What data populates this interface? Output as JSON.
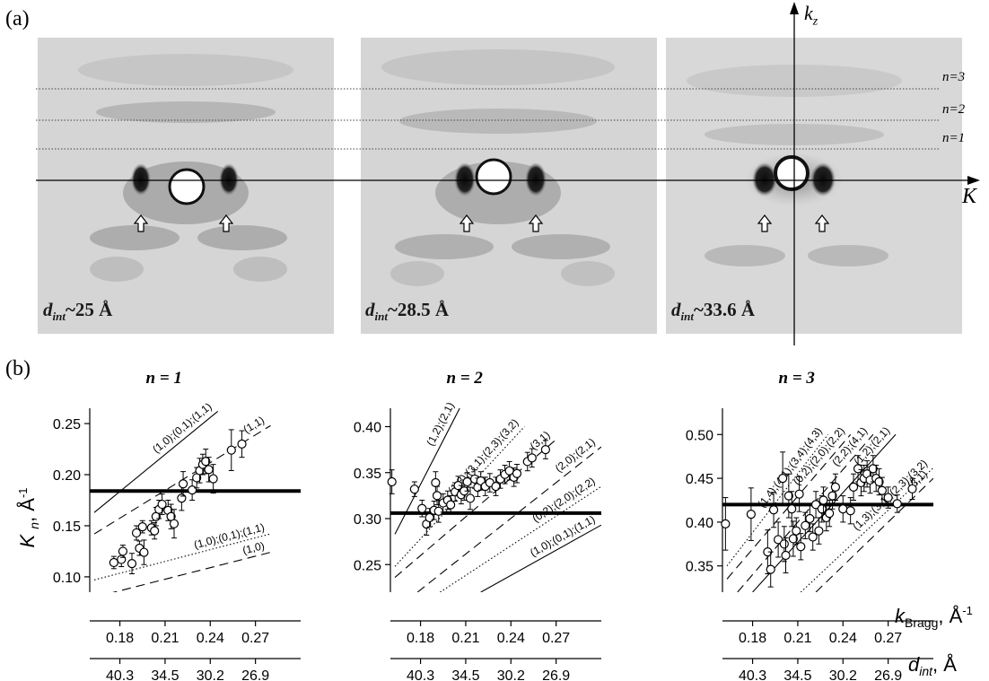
{
  "panel_a": {
    "label": "(a)",
    "patterns": [
      {
        "d_prefix": "d",
        "d_sub": "int",
        "d_value": "~25 Å"
      },
      {
        "d_prefix": "d",
        "d_sub": "int",
        "d_value": "~28.5 Å"
      },
      {
        "d_prefix": "d",
        "d_sub": "int",
        "d_value": "~33.6 Å"
      }
    ],
    "layer_lines": [
      "n=3",
      "n=2",
      "n=1"
    ],
    "axis_kz": {
      "main": "k",
      "sub": "z"
    },
    "axis_K": "K"
  },
  "panel_b": {
    "label": "(b)"
  },
  "colors": {
    "pattern_bg": "#d6d6d6",
    "spot": "#111111",
    "mean_line": "#000000"
  },
  "chart_data": [
    {
      "type": "scatter",
      "title": "n = 1",
      "ylabel": "Kn, Å-1",
      "xlim": [
        0.16,
        0.3
      ],
      "ylim": [
        0.085,
        0.265
      ],
      "yticks": [
        "0.10",
        "0.15",
        "0.20",
        "0.25"
      ],
      "xticks": [
        "0.18",
        "0.21",
        "0.24",
        "0.27"
      ],
      "dticks": [
        "40.3",
        "34.5",
        "30.2",
        "26.9"
      ],
      "mean": 0.184,
      "points": [
        {
          "x": 0.176,
          "y": 0.114,
          "e": 0.006
        },
        {
          "x": 0.181,
          "y": 0.117,
          "e": 0.007
        },
        {
          "x": 0.182,
          "y": 0.125,
          "e": 0.006
        },
        {
          "x": 0.188,
          "y": 0.113,
          "e": 0.01
        },
        {
          "x": 0.191,
          "y": 0.143,
          "e": 0.007
        },
        {
          "x": 0.193,
          "y": 0.128,
          "e": 0.007
        },
        {
          "x": 0.195,
          "y": 0.149,
          "e": 0.006
        },
        {
          "x": 0.196,
          "y": 0.124,
          "e": 0.012
        },
        {
          "x": 0.201,
          "y": 0.148,
          "e": 0.007
        },
        {
          "x": 0.203,
          "y": 0.145,
          "e": 0.008
        },
        {
          "x": 0.204,
          "y": 0.159,
          "e": 0.009
        },
        {
          "x": 0.206,
          "y": 0.166,
          "e": 0.009
        },
        {
          "x": 0.208,
          "y": 0.171,
          "e": 0.01
        },
        {
          "x": 0.212,
          "y": 0.165,
          "e": 0.01
        },
        {
          "x": 0.214,
          "y": 0.159,
          "e": 0.012
        },
        {
          "x": 0.216,
          "y": 0.152,
          "e": 0.014
        },
        {
          "x": 0.221,
          "y": 0.177,
          "e": 0.012
        },
        {
          "x": 0.222,
          "y": 0.191,
          "e": 0.012
        },
        {
          "x": 0.228,
          "y": 0.185,
          "e": 0.01
        },
        {
          "x": 0.231,
          "y": 0.197,
          "e": 0.01
        },
        {
          "x": 0.233,
          "y": 0.204,
          "e": 0.012
        },
        {
          "x": 0.235,
          "y": 0.21,
          "e": 0.01
        },
        {
          "x": 0.237,
          "y": 0.213,
          "e": 0.012
        },
        {
          "x": 0.239,
          "y": 0.205,
          "e": 0.012
        },
        {
          "x": 0.242,
          "y": 0.196,
          "e": 0.014
        },
        {
          "x": 0.254,
          "y": 0.224,
          "e": 0.02
        },
        {
          "x": 0.261,
          "y": 0.23,
          "e": 0.013
        }
      ],
      "lines": [
        {
          "style": "solid",
          "label": "(1,0);(0,1);(1,1)",
          "x1": 0.163,
          "y1": 0.163,
          "x2": 0.245,
          "y2": 0.262
        },
        {
          "style": "dashed",
          "label": "(1,1)",
          "x1": 0.163,
          "y1": 0.142,
          "x2": 0.28,
          "y2": 0.248
        },
        {
          "style": "dotted",
          "label": "(1,0);(0,1);(1,1)",
          "x1": 0.163,
          "y1": 0.097,
          "x2": 0.28,
          "y2": 0.142
        },
        {
          "style": "dashed",
          "label": "(1,0)",
          "x1": 0.163,
          "y1": 0.08,
          "x2": 0.28,
          "y2": 0.124
        }
      ]
    },
    {
      "type": "scatter",
      "title": "n = 2",
      "xlim": [
        0.16,
        0.3
      ],
      "ylim": [
        0.22,
        0.42
      ],
      "yticks": [
        "0.25",
        "0.30",
        "0.35",
        "0.40"
      ],
      "xticks": [
        "0.18",
        "0.21",
        "0.24",
        "0.27"
      ],
      "dticks": [
        "40.3",
        "34.5",
        "30.2",
        "26.9"
      ],
      "mean": 0.306,
      "points": [
        {
          "x": 0.161,
          "y": 0.34,
          "e": 0.013
        },
        {
          "x": 0.176,
          "y": 0.332,
          "e": 0.008
        },
        {
          "x": 0.181,
          "y": 0.311,
          "e": 0.009
        },
        {
          "x": 0.184,
          "y": 0.294,
          "e": 0.012
        },
        {
          "x": 0.186,
          "y": 0.301,
          "e": 0.01
        },
        {
          "x": 0.189,
          "y": 0.309,
          "e": 0.01
        },
        {
          "x": 0.19,
          "y": 0.339,
          "e": 0.012
        },
        {
          "x": 0.191,
          "y": 0.325,
          "e": 0.01
        },
        {
          "x": 0.192,
          "y": 0.308,
          "e": 0.012
        },
        {
          "x": 0.195,
          "y": 0.317,
          "e": 0.01
        },
        {
          "x": 0.198,
          "y": 0.32,
          "e": 0.01
        },
        {
          "x": 0.2,
          "y": 0.315,
          "e": 0.01
        },
        {
          "x": 0.203,
          "y": 0.329,
          "e": 0.01
        },
        {
          "x": 0.205,
          "y": 0.336,
          "e": 0.01
        },
        {
          "x": 0.207,
          "y": 0.326,
          "e": 0.01
        },
        {
          "x": 0.209,
          "y": 0.33,
          "e": 0.01
        },
        {
          "x": 0.211,
          "y": 0.34,
          "e": 0.01
        },
        {
          "x": 0.213,
          "y": 0.322,
          "e": 0.012
        },
        {
          "x": 0.216,
          "y": 0.343,
          "e": 0.01
        },
        {
          "x": 0.218,
          "y": 0.334,
          "e": 0.01
        },
        {
          "x": 0.22,
          "y": 0.341,
          "e": 0.01
        },
        {
          "x": 0.223,
          "y": 0.335,
          "e": 0.01
        },
        {
          "x": 0.226,
          "y": 0.339,
          "e": 0.01
        },
        {
          "x": 0.23,
          "y": 0.335,
          "e": 0.01
        },
        {
          "x": 0.233,
          "y": 0.343,
          "e": 0.01
        },
        {
          "x": 0.236,
          "y": 0.348,
          "e": 0.01
        },
        {
          "x": 0.239,
          "y": 0.352,
          "e": 0.01
        },
        {
          "x": 0.242,
          "y": 0.345,
          "e": 0.01
        },
        {
          "x": 0.244,
          "y": 0.349,
          "e": 0.01
        },
        {
          "x": 0.251,
          "y": 0.362,
          "e": 0.01
        },
        {
          "x": 0.254,
          "y": 0.366,
          "e": 0.01
        },
        {
          "x": 0.263,
          "y": 0.375,
          "e": 0.01
        }
      ],
      "lines": [
        {
          "style": "solid",
          "label": "(1,2);(2,1)",
          "x1": 0.163,
          "y1": 0.283,
          "x2": 0.206,
          "y2": 0.42
        },
        {
          "style": "dotted",
          "label": "(1,3);(3,1);(2,3);(3,2)",
          "x1": 0.163,
          "y1": 0.248,
          "x2": 0.249,
          "y2": 0.4
        },
        {
          "style": "dashed",
          "label": "(3,1)",
          "x1": 0.163,
          "y1": 0.236,
          "x2": 0.27,
          "y2": 0.386
        },
        {
          "style": "dashed",
          "label": "(2,0);(2,1)",
          "x1": 0.178,
          "y1": 0.22,
          "x2": 0.3,
          "y2": 0.378
        },
        {
          "style": "dotted",
          "label": "(0,2);(2,0);(2,2)",
          "x1": 0.193,
          "y1": 0.22,
          "x2": 0.3,
          "y2": 0.335
        },
        {
          "style": "solid",
          "label": "(1,0);(0,1);(1,1)",
          "x1": 0.22,
          "y1": 0.22,
          "x2": 0.3,
          "y2": 0.293
        }
      ]
    },
    {
      "type": "scatter",
      "title": "n = 3",
      "xlim": [
        0.16,
        0.3
      ],
      "ylim": [
        0.32,
        0.53
      ],
      "yticks": [
        "0.35",
        "0.40",
        "0.45",
        "0.50"
      ],
      "xticks": [
        "0.18",
        "0.21",
        "0.24",
        "0.27"
      ],
      "dticks": [
        "40.3",
        "34.5",
        "30.2",
        "26.9"
      ],
      "xlabel": "kBragg, Å-1",
      "dlabel": "dint, Å",
      "mean": 0.42,
      "points": [
        {
          "x": 0.162,
          "y": 0.398,
          "e": 0.03
        },
        {
          "x": 0.179,
          "y": 0.409,
          "e": 0.03
        },
        {
          "x": 0.19,
          "y": 0.366,
          "e": 0.025
        },
        {
          "x": 0.192,
          "y": 0.346,
          "e": 0.02
        },
        {
          "x": 0.194,
          "y": 0.414,
          "e": 0.02
        },
        {
          "x": 0.197,
          "y": 0.38,
          "e": 0.02
        },
        {
          "x": 0.2,
          "y": 0.45,
          "e": 0.03
        },
        {
          "x": 0.201,
          "y": 0.375,
          "e": 0.02
        },
        {
          "x": 0.202,
          "y": 0.362,
          "e": 0.02
        },
        {
          "x": 0.204,
          "y": 0.43,
          "e": 0.025
        },
        {
          "x": 0.206,
          "y": 0.415,
          "e": 0.02
        },
        {
          "x": 0.207,
          "y": 0.381,
          "e": 0.02
        },
        {
          "x": 0.209,
          "y": 0.39,
          "e": 0.015
        },
        {
          "x": 0.211,
          "y": 0.432,
          "e": 0.02
        },
        {
          "x": 0.212,
          "y": 0.372,
          "e": 0.015
        },
        {
          "x": 0.215,
          "y": 0.396,
          "e": 0.015
        },
        {
          "x": 0.218,
          "y": 0.404,
          "e": 0.015
        },
        {
          "x": 0.22,
          "y": 0.383,
          "e": 0.015
        },
        {
          "x": 0.222,
          "y": 0.42,
          "e": 0.015
        },
        {
          "x": 0.224,
          "y": 0.39,
          "e": 0.015
        },
        {
          "x": 0.226,
          "y": 0.415,
          "e": 0.015
        },
        {
          "x": 0.227,
          "y": 0.425,
          "e": 0.015
        },
        {
          "x": 0.229,
          "y": 0.405,
          "e": 0.015
        },
        {
          "x": 0.231,
          "y": 0.41,
          "e": 0.015
        },
        {
          "x": 0.233,
          "y": 0.43,
          "e": 0.015
        },
        {
          "x": 0.235,
          "y": 0.44,
          "e": 0.015
        },
        {
          "x": 0.24,
          "y": 0.415,
          "e": 0.015
        },
        {
          "x": 0.245,
          "y": 0.413,
          "e": 0.015
        },
        {
          "x": 0.247,
          "y": 0.44,
          "e": 0.015
        },
        {
          "x": 0.25,
          "y": 0.461,
          "e": 0.015
        },
        {
          "x": 0.252,
          "y": 0.445,
          "e": 0.015
        },
        {
          "x": 0.254,
          "y": 0.45,
          "e": 0.015
        },
        {
          "x": 0.256,
          "y": 0.455,
          "e": 0.015
        },
        {
          "x": 0.258,
          "y": 0.448,
          "e": 0.015
        },
        {
          "x": 0.26,
          "y": 0.461,
          "e": 0.015
        },
        {
          "x": 0.262,
          "y": 0.45,
          "e": 0.015
        },
        {
          "x": 0.264,
          "y": 0.446,
          "e": 0.015
        },
        {
          "x": 0.266,
          "y": 0.436,
          "e": 0.015
        },
        {
          "x": 0.27,
          "y": 0.428,
          "e": 0.012
        },
        {
          "x": 0.276,
          "y": 0.421,
          "e": 0.01
        },
        {
          "x": 0.286,
          "y": 0.438,
          "e": 0.012
        }
      ],
      "lines": [
        {
          "style": "dotted",
          "label": "(1,4);(4,1);(3,4);(4,3)",
          "x1": 0.163,
          "y1": 0.35,
          "x2": 0.23,
          "y2": 0.5
        },
        {
          "style": "dashed",
          "label": "(0,2);(2,0);(2,2)",
          "x1": 0.163,
          "y1": 0.335,
          "x2": 0.245,
          "y2": 0.5
        },
        {
          "style": "dashed",
          "label": "(2,2);(4,1)",
          "x1": 0.17,
          "y1": 0.32,
          "x2": 0.26,
          "y2": 0.5
        },
        {
          "style": "solid",
          "label": "(1,2);(2,1)",
          "x1": 0.18,
          "y1": 0.32,
          "x2": 0.275,
          "y2": 0.5
        },
        {
          "style": "dotted",
          "label": "(1,3);(3,1);(2,3);(3,2)",
          "x1": 0.212,
          "y1": 0.32,
          "x2": 0.3,
          "y2": 0.462
        },
        {
          "style": "dashed",
          "label": "(3,1)",
          "x1": 0.222,
          "y1": 0.32,
          "x2": 0.3,
          "y2": 0.45
        }
      ]
    }
  ]
}
